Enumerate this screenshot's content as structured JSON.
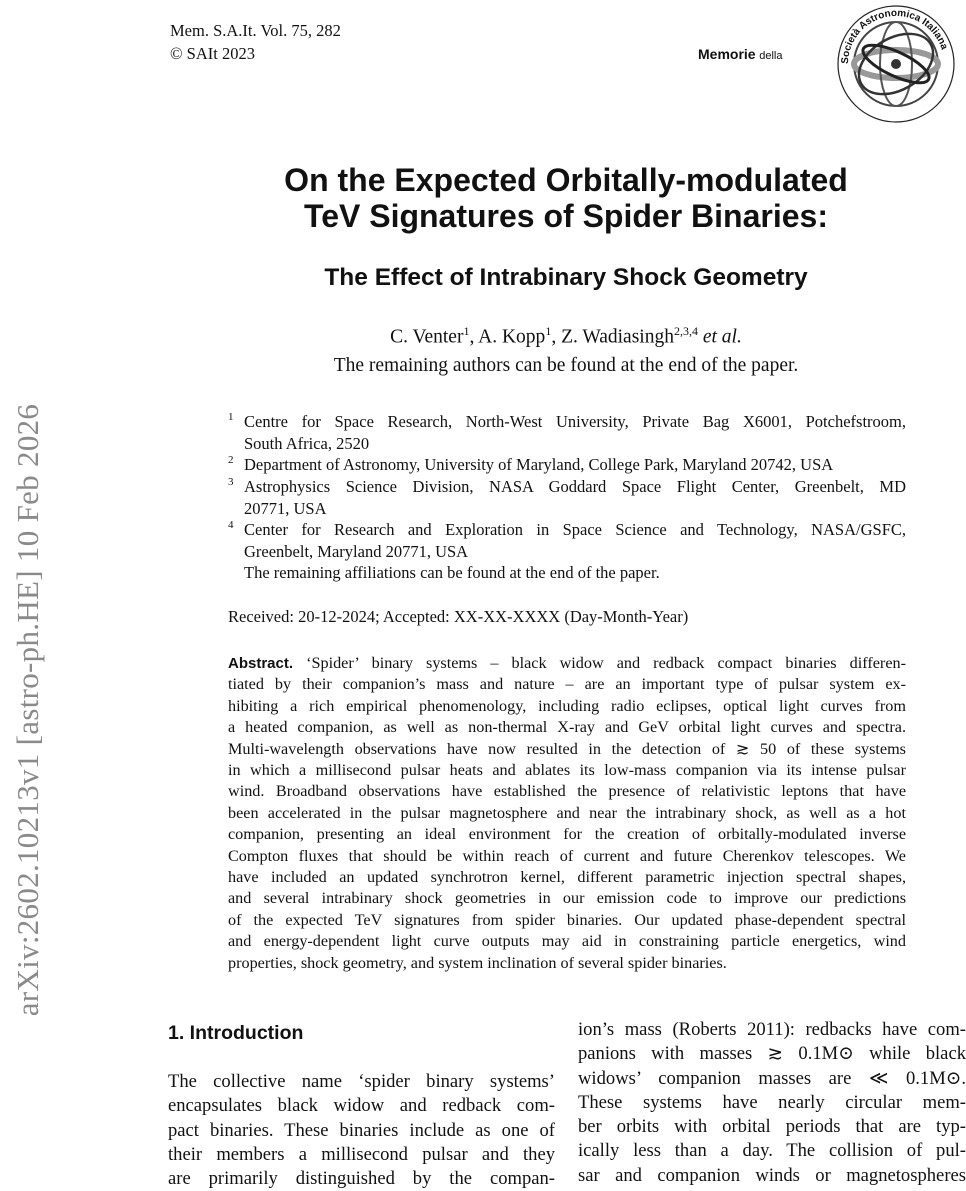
{
  "arxiv_stamp": "arXiv:2602.10213v1  [astro-ph.HE]  10 Feb 2026",
  "header": {
    "journal_line": "Mem. S.A.It. Vol. 75, 282",
    "copyright_line": "© SAIt   2023",
    "memorie": "Memorie",
    "della": "della",
    "logo_text": "Società Astronomica Italiana 1871 Società degli Spettroscopisti"
  },
  "title": {
    "line1": "On the Expected Orbitally-modulated",
    "line2": "TeV Signatures of Spider Binaries:",
    "subtitle": "The Effect of Intrabinary Shock Geometry"
  },
  "authors": {
    "a1": "C. Venter",
    "a1_sup": "1",
    "a2": "A.  Kopp",
    "a2_sup": "1",
    "a3": "Z. Wadiasingh",
    "a3_sup": "2,3,4",
    "etal": "et al.",
    "remaining": "The remaining authors can be found at the end of the paper."
  },
  "affiliations": [
    {
      "num": "1",
      "lines": [
        "Centre for Space Research, North-West University, Private Bag X6001, Potchefstroom,",
        "South Africa, 2520"
      ]
    },
    {
      "num": "2",
      "lines": [
        "Department of Astronomy, University of Maryland, College Park, Maryland 20742, USA"
      ]
    },
    {
      "num": "3",
      "lines": [
        "Astrophysics Science Division, NASA Goddard Space Flight Center, Greenbelt, MD",
        "20771, USA"
      ]
    },
    {
      "num": "4",
      "lines": [
        "Center for Research and Exploration in Space Science and Technology, NASA/GSFC,",
        "Greenbelt, Maryland 20771, USA",
        "The remaining affiliations can be found at the end of the paper."
      ]
    }
  ],
  "received": "Received: 20-12-2024; Accepted: XX-XX-XXXX (Day-Month-Year)",
  "abstract": {
    "label": "Abstract.",
    "lines": [
      "‘Spider’ binary systems – black widow and redback compact binaries differen-",
      "tiated by their companion’s mass and nature – are an important type of pulsar system ex-",
      "hibiting a rich empirical phenomenology, including radio eclipses, optical light curves from",
      "a heated companion, as well as non-thermal X-ray and GeV orbital light curves and spectra.",
      "Multi-wavelength observations have now resulted in the detection of ≳ 50 of these systems",
      "in which a millisecond pulsar heats and ablates its low-mass companion via its intense pulsar",
      "wind. Broadband observations have established the presence of relativistic leptons that have",
      "been accelerated in the pulsar magnetosphere and near the intrabinary shock, as well as a hot",
      "companion, presenting an ideal environment for the creation of orbitally-modulated inverse",
      "Compton fluxes that should be within reach of current and future Cherenkov telescopes. We",
      "have included an updated synchrotron kernel, different parametric injection spectral shapes,",
      "and several intrabinary shock geometries in our emission code to improve our predictions",
      "of the expected TeV signatures from spider binaries. Our updated phase-dependent spectral",
      "and energy-dependent light curve outputs may aid in constraining particle energetics, wind",
      "properties, shock geometry, and system inclination of several spider binaries."
    ]
  },
  "section": {
    "heading": "1. Introduction",
    "left_lines": [
      "The collective name ‘spider binary systems’",
      "encapsulates black widow and redback com-",
      "pact binaries. These binaries include as one of",
      "their members a millisecond pulsar and they",
      "are primarily distinguished by the compan-"
    ],
    "right_lines": [
      "ion’s mass (Roberts 2011): redbacks have com-",
      "panions with masses ≳ 0.1M⊙ while black",
      "widows’ companion masses are ≪ 0.1M⊙.",
      "These systems have nearly circular mem-",
      "ber orbits with orbital periods that are typ-",
      "ically less than a day. The collision of pul-",
      "sar and companion winds or magnetospheres"
    ]
  }
}
